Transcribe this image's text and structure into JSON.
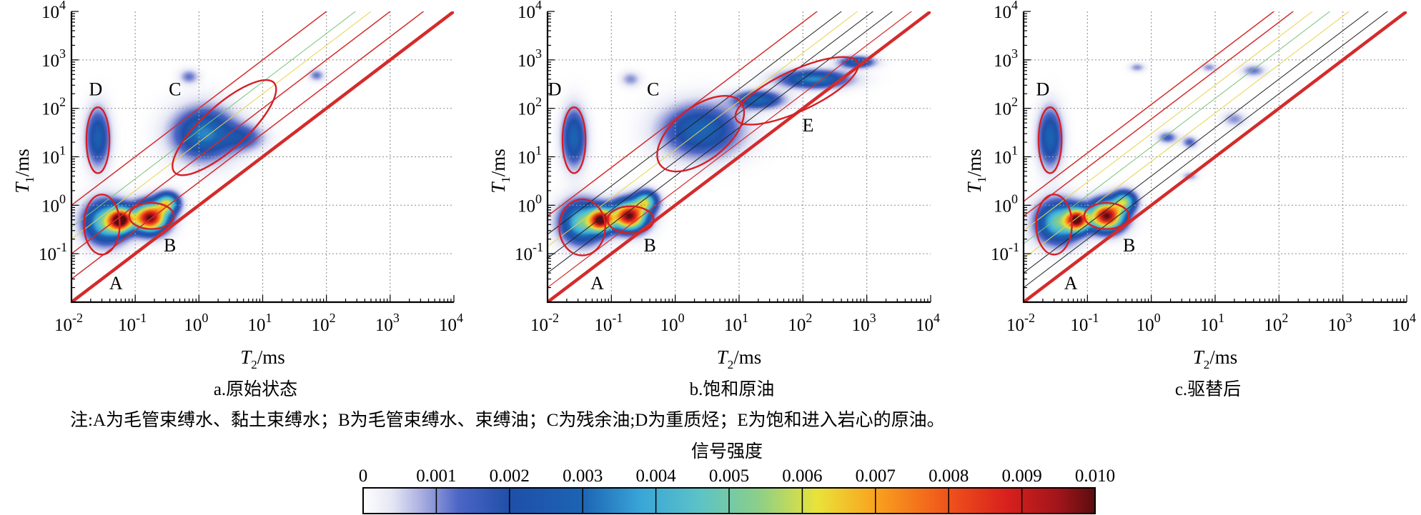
{
  "chart_data": [
    {
      "type": "heatmap",
      "panel": "a",
      "caption": "a.原始状态",
      "xlabel_var": "T",
      "xlabel_sub": "2",
      "xlabel_unit": "/ms",
      "ylabel_var": "T",
      "ylabel_sub": "1",
      "ylabel_unit": "/ms",
      "xscale": "log",
      "yscale": "log",
      "xlim": [
        0.01,
        10000
      ],
      "ylim": [
        0.01,
        10000
      ],
      "x_ticks": [
        {
          "base": "10",
          "exp": "-2"
        },
        {
          "base": "10",
          "exp": "-1"
        },
        {
          "base": "10",
          "exp": "0"
        },
        {
          "base": "10",
          "exp": "1"
        },
        {
          "base": "10",
          "exp": "2"
        },
        {
          "base": "10",
          "exp": "3"
        },
        {
          "base": "10",
          "exp": "4"
        }
      ],
      "y_ticks": [
        {
          "base": "10",
          "exp": "-1"
        },
        {
          "base": "10",
          "exp": "0"
        },
        {
          "base": "10",
          "exp": "1"
        },
        {
          "base": "10",
          "exp": "2"
        },
        {
          "base": "10",
          "exp": "3"
        },
        {
          "base": "10",
          "exp": "4"
        }
      ],
      "grid": true,
      "blobs": [
        {
          "t2": 0.026,
          "t1": 25,
          "sx": 0.12,
          "sy": 0.38,
          "amp": 0.0028
        },
        {
          "t2": 0.035,
          "t1": 0.45,
          "sx": 0.22,
          "sy": 0.28,
          "amp": 0.0052
        },
        {
          "t2": 0.06,
          "t1": 0.5,
          "sx": 0.12,
          "sy": 0.16,
          "amp": 0.0085
        },
        {
          "t2": 0.17,
          "t1": 0.55,
          "sx": 0.18,
          "sy": 0.2,
          "amp": 0.01
        },
        {
          "t2": 0.32,
          "t1": 1.1,
          "sx": 0.12,
          "sy": 0.14,
          "amp": 0.0055
        },
        {
          "t2": 1.2,
          "t1": 30,
          "sx": 0.32,
          "sy": 0.35,
          "amp": 0.0034
        },
        {
          "t2": 0.7,
          "t1": 450,
          "sx": 0.1,
          "sy": 0.1,
          "amp": 0.0012
        },
        {
          "t2": 5,
          "t1": 25,
          "sx": 0.22,
          "sy": 0.18,
          "amp": 0.0016
        },
        {
          "t2": 70,
          "t1": 480,
          "sx": 0.08,
          "sy": 0.08,
          "amp": 0.0012
        }
      ],
      "regions": [
        {
          "label": "A",
          "t2": 0.03,
          "t1": 0.4,
          "rx": 0.28,
          "ry": 0.62,
          "angle": 0
        },
        {
          "label": "B",
          "t2": 0.18,
          "t1": 0.6,
          "rx": 0.35,
          "ry": 0.27,
          "angle": 0
        },
        {
          "label": "C",
          "t2": 2.5,
          "t1": 40,
          "rx": 1.05,
          "ry": 0.45,
          "angle": -42
        },
        {
          "label": "D",
          "t2": 0.026,
          "t1": 22,
          "rx": 0.18,
          "ry": 0.68,
          "angle": 0
        }
      ],
      "label_pos": [
        {
          "label": "A",
          "t2": 0.05,
          "t1": 0.025
        },
        {
          "label": "B",
          "t2": 0.35,
          "t1": 0.15
        },
        {
          "label": "C",
          "t2": 0.42,
          "t1": 250
        },
        {
          "label": "D",
          "t2": 0.024,
          "t1": 250
        }
      ],
      "ref_lines": [
        {
          "ratio": 1,
          "color": "#d42b2b",
          "width": 4.5
        },
        {
          "ratio": 3,
          "color": "#d42b2b",
          "width": 1.5
        },
        {
          "ratio": 10,
          "color": "#d42b2b",
          "width": 1.5
        },
        {
          "ratio": 20,
          "color": "#e6d44c",
          "width": 1
        },
        {
          "ratio": 35,
          "color": "#79c379",
          "width": 1
        },
        {
          "ratio": 100,
          "color": "#d42b2b",
          "width": 1.5
        }
      ]
    },
    {
      "type": "heatmap",
      "panel": "b",
      "caption": "b.饱和原油",
      "xlabel_var": "T",
      "xlabel_sub": "2",
      "xlabel_unit": "/ms",
      "ylabel_var": "T",
      "ylabel_sub": "1",
      "ylabel_unit": "/ms",
      "xscale": "log",
      "yscale": "log",
      "xlim": [
        0.01,
        10000
      ],
      "ylim": [
        0.01,
        10000
      ],
      "x_ticks": [
        {
          "base": "10",
          "exp": "-2"
        },
        {
          "base": "10",
          "exp": "-1"
        },
        {
          "base": "10",
          "exp": "0"
        },
        {
          "base": "10",
          "exp": "1"
        },
        {
          "base": "10",
          "exp": "2"
        },
        {
          "base": "10",
          "exp": "3"
        },
        {
          "base": "10",
          "exp": "4"
        }
      ],
      "y_ticks": [
        {
          "base": "10",
          "exp": "-1"
        },
        {
          "base": "10",
          "exp": "0"
        },
        {
          "base": "10",
          "exp": "1"
        },
        {
          "base": "10",
          "exp": "2"
        },
        {
          "base": "10",
          "exp": "3"
        },
        {
          "base": "10",
          "exp": "4"
        }
      ],
      "grid": true,
      "blobs": [
        {
          "t2": 0.026,
          "t1": 25,
          "sx": 0.12,
          "sy": 0.38,
          "amp": 0.003
        },
        {
          "t2": 0.035,
          "t1": 0.45,
          "sx": 0.22,
          "sy": 0.28,
          "amp": 0.005
        },
        {
          "t2": 0.07,
          "t1": 0.5,
          "sx": 0.12,
          "sy": 0.16,
          "amp": 0.0085
        },
        {
          "t2": 0.19,
          "t1": 0.6,
          "sx": 0.18,
          "sy": 0.2,
          "amp": 0.01
        },
        {
          "t2": 0.35,
          "t1": 1.2,
          "sx": 0.12,
          "sy": 0.14,
          "amp": 0.005
        },
        {
          "t2": 2.5,
          "t1": 35,
          "sx": 0.4,
          "sy": 0.35,
          "amp": 0.003
        },
        {
          "t2": 20,
          "t1": 150,
          "sx": 0.25,
          "sy": 0.12,
          "amp": 0.003
        },
        {
          "t2": 150,
          "t1": 400,
          "sx": 0.35,
          "sy": 0.12,
          "amp": 0.0035
        },
        {
          "t2": 700,
          "t1": 900,
          "sx": 0.18,
          "sy": 0.08,
          "amp": 0.0028
        },
        {
          "t2": 0.2,
          "t1": 400,
          "sx": 0.1,
          "sy": 0.1,
          "amp": 0.001
        }
      ],
      "regions": [
        {
          "label": "A",
          "t2": 0.035,
          "t1": 0.35,
          "rx": 0.36,
          "ry": 0.58,
          "angle": 0
        },
        {
          "label": "B",
          "t2": 0.2,
          "t1": 0.5,
          "rx": 0.36,
          "ry": 0.28,
          "angle": 0
        },
        {
          "label": "C",
          "t2": 2.5,
          "t1": 30,
          "rx": 0.8,
          "ry": 0.55,
          "angle": -38
        },
        {
          "label": "D",
          "t2": 0.026,
          "t1": 22,
          "rx": 0.18,
          "ry": 0.68,
          "angle": 0
        },
        {
          "label": "E",
          "t2": 80,
          "t1": 230,
          "rx": 1.05,
          "ry": 0.42,
          "angle": -25
        }
      ],
      "label_pos": [
        {
          "label": "A",
          "t2": 0.06,
          "t1": 0.025
        },
        {
          "label": "B",
          "t2": 0.4,
          "t1": 0.15
        },
        {
          "label": "C",
          "t2": 0.45,
          "t1": 250
        },
        {
          "label": "D",
          "t2": 0.013,
          "t1": 250
        },
        {
          "label": "E",
          "t2": 120,
          "t1": 45
        }
      ],
      "ref_lines": [
        {
          "ratio": 1,
          "color": "#d42b2b",
          "width": 4.5
        },
        {
          "ratio": 2,
          "color": "#d42b2b",
          "width": 1.2
        },
        {
          "ratio": 4,
          "color": "#222222",
          "width": 1
        },
        {
          "ratio": 8,
          "color": "#222222",
          "width": 1
        },
        {
          "ratio": 14,
          "color": "#e6d44c",
          "width": 1
        },
        {
          "ratio": 25,
          "color": "#222222",
          "width": 1
        },
        {
          "ratio": 60,
          "color": "#d42b2b",
          "width": 1.5
        }
      ]
    },
    {
      "type": "heatmap",
      "panel": "c",
      "caption": "c.驱替后",
      "xlabel_var": "T",
      "xlabel_sub": "2",
      "xlabel_unit": "/ms",
      "ylabel_var": "T",
      "ylabel_sub": "1",
      "ylabel_unit": "/ms",
      "xscale": "log",
      "yscale": "log",
      "xlim": [
        0.01,
        10000
      ],
      "ylim": [
        0.01,
        10000
      ],
      "x_ticks": [
        {
          "base": "10",
          "exp": "-2"
        },
        {
          "base": "10",
          "exp": "-1"
        },
        {
          "base": "10",
          "exp": "0"
        },
        {
          "base": "10",
          "exp": "1"
        },
        {
          "base": "10",
          "exp": "2"
        },
        {
          "base": "10",
          "exp": "3"
        },
        {
          "base": "10",
          "exp": "4"
        }
      ],
      "y_ticks": [
        {
          "base": "10",
          "exp": "-1"
        },
        {
          "base": "10",
          "exp": "0"
        },
        {
          "base": "10",
          "exp": "1"
        },
        {
          "base": "10",
          "exp": "2"
        },
        {
          "base": "10",
          "exp": "3"
        },
        {
          "base": "10",
          "exp": "4"
        }
      ],
      "grid": true,
      "blobs": [
        {
          "t2": 0.026,
          "t1": 25,
          "sx": 0.12,
          "sy": 0.38,
          "amp": 0.003
        },
        {
          "t2": 0.035,
          "t1": 0.45,
          "sx": 0.22,
          "sy": 0.28,
          "amp": 0.005
        },
        {
          "t2": 0.07,
          "t1": 0.5,
          "sx": 0.12,
          "sy": 0.16,
          "amp": 0.0085
        },
        {
          "t2": 0.2,
          "t1": 0.6,
          "sx": 0.18,
          "sy": 0.2,
          "amp": 0.01
        },
        {
          "t2": 0.38,
          "t1": 1.2,
          "sx": 0.12,
          "sy": 0.14,
          "amp": 0.005
        },
        {
          "t2": 1.8,
          "t1": 25,
          "sx": 0.1,
          "sy": 0.08,
          "amp": 0.0015
        },
        {
          "t2": 4,
          "t1": 20,
          "sx": 0.08,
          "sy": 0.08,
          "amp": 0.0014
        },
        {
          "t2": 4,
          "t1": 4,
          "sx": 0.08,
          "sy": 0.06,
          "amp": 0.001
        },
        {
          "t2": 0.6,
          "t1": 700,
          "sx": 0.08,
          "sy": 0.06,
          "amp": 0.001
        },
        {
          "t2": 8,
          "t1": 700,
          "sx": 0.08,
          "sy": 0.06,
          "amp": 0.001
        },
        {
          "t2": 40,
          "t1": 600,
          "sx": 0.12,
          "sy": 0.08,
          "amp": 0.0012
        },
        {
          "t2": 20,
          "t1": 60,
          "sx": 0.12,
          "sy": 0.1,
          "amp": 0.001
        }
      ],
      "regions": [
        {
          "label": "A",
          "t2": 0.03,
          "t1": 0.4,
          "rx": 0.28,
          "ry": 0.62,
          "angle": 0
        },
        {
          "label": "B",
          "t2": 0.2,
          "t1": 0.6,
          "rx": 0.35,
          "ry": 0.27,
          "angle": 0
        },
        {
          "label": "D",
          "t2": 0.026,
          "t1": 22,
          "rx": 0.18,
          "ry": 0.68,
          "angle": 0
        }
      ],
      "label_pos": [
        {
          "label": "A",
          "t2": 0.055,
          "t1": 0.025
        },
        {
          "label": "B",
          "t2": 0.45,
          "t1": 0.15
        },
        {
          "label": "D",
          "t2": 0.02,
          "t1": 250
        }
      ],
      "ref_lines": [
        {
          "ratio": 1,
          "color": "#d42b2b",
          "width": 4.5
        },
        {
          "ratio": 2,
          "color": "#222222",
          "width": 1
        },
        {
          "ratio": 4,
          "color": "#222222",
          "width": 1
        },
        {
          "ratio": 8,
          "color": "#e6d44c",
          "width": 1
        },
        {
          "ratio": 16,
          "color": "#79c379",
          "width": 1
        },
        {
          "ratio": 30,
          "color": "#e6d44c",
          "width": 1
        },
        {
          "ratio": 60,
          "color": "#d42b2b",
          "width": 1.5
        },
        {
          "ratio": 120,
          "color": "#d42b2b",
          "width": 1.5
        }
      ]
    }
  ],
  "note": "注:A为毛管束缚水、黏土束缚水；B为毛管束缚水、束缚油；C为残余油;D为重质烃；E为饱和进入岩心的原油。",
  "colorbar": {
    "title": "信号强度",
    "ticks": [
      "0",
      "0.001",
      "0.002",
      "0.003",
      "0.004",
      "0.005",
      "0.006",
      "0.007",
      "0.008",
      "0.009",
      "0.010"
    ],
    "min": 0,
    "max": 0.01,
    "colormap": [
      [
        0.0,
        "#ffffff"
      ],
      [
        0.04,
        "#e4e6f4"
      ],
      [
        0.08,
        "#a9aee0"
      ],
      [
        0.13,
        "#4c66c6"
      ],
      [
        0.2,
        "#1f4fa8"
      ],
      [
        0.3,
        "#1c64b4"
      ],
      [
        0.38,
        "#39a6d8"
      ],
      [
        0.46,
        "#5cc3c6"
      ],
      [
        0.54,
        "#8ccf88"
      ],
      [
        0.62,
        "#e9e33a"
      ],
      [
        0.7,
        "#f9a21e"
      ],
      [
        0.8,
        "#f0521b"
      ],
      [
        0.88,
        "#d8201d"
      ],
      [
        0.95,
        "#a1151a"
      ],
      [
        1.0,
        "#5a0d0f"
      ]
    ]
  },
  "colors": {
    "ellipse": "#d61f26",
    "grid": "#9a9a9a"
  }
}
